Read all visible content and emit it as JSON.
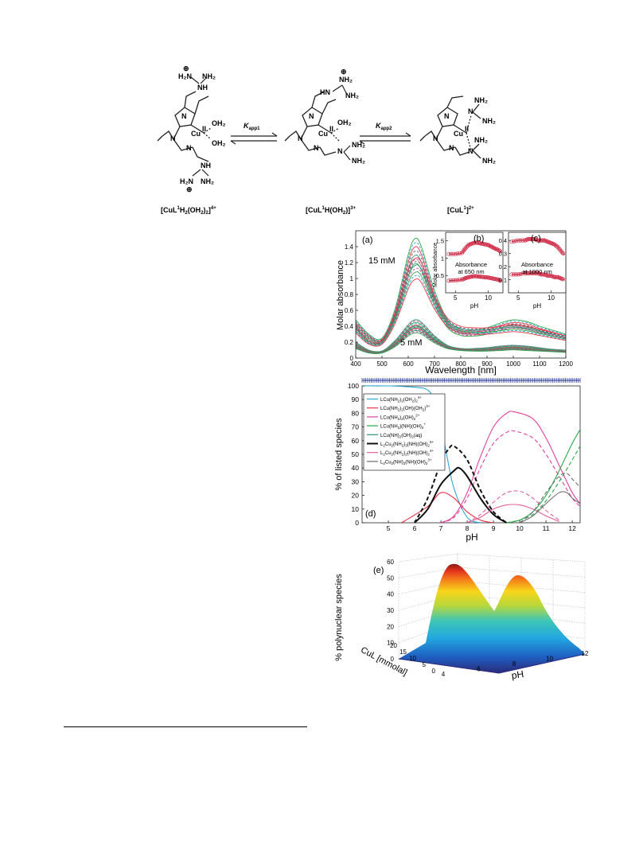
{
  "scheme": {
    "species": [
      {
        "label_base": "[CuL",
        "label_sup1": "1",
        "label_mid": "H",
        "label_sub1": "2",
        "label_tail": "(OH",
        "label_sub2": "2",
        "label_tail2": ")",
        "label_sub3": "2",
        "label_end": "]",
        "label_sup_end": "4+"
      },
      {
        "label_base": "[CuL",
        "label_sup1": "1",
        "label_mid": "H(OH",
        "label_sub1": "2",
        "label_tail": ")]",
        "label_sup_end": "3+"
      },
      {
        "label_base": "[CuL",
        "label_sup1": "1",
        "label_end": "]",
        "label_sup_end": "2+"
      }
    ],
    "k1_main": "K",
    "k1_sub": "app1",
    "k2_main": "K",
    "k2_sub": "app2",
    "atoms": {
      "N": "N",
      "NH": "NH",
      "H2N": "H₂N",
      "NH2": "NH₂",
      "OH2": "OH₂",
      "Cu": "Cu",
      "Cu_ox": "II",
      "HN": "HN",
      "plus": "⊕"
    }
  },
  "panel_a": {
    "letter": "(a)",
    "ylabel": "Molar absorbance",
    "xlabel": "Wavelength [nm]",
    "label_15": "15 mM",
    "label_5": "5 mM",
    "xticks": [
      "400",
      "500",
      "600",
      "700",
      "800",
      "900",
      "1000",
      "1100",
      "1200"
    ],
    "yticks": [
      "0",
      "0.2",
      "0.4",
      "0.6",
      "0.8",
      "1",
      "1.2",
      "1.4"
    ]
  },
  "panel_b": {
    "letter": "(b)",
    "ylabel": "Molar absorbance",
    "xlabel": "pH",
    "annotation_1": "Absorbance",
    "annotation_2": "at 650 nm",
    "xticks": [
      "5",
      "10"
    ],
    "yticks": [
      "0.5",
      "1",
      "1.5"
    ]
  },
  "panel_c": {
    "letter": "(c)",
    "xlabel": "pH",
    "annotation_1": "Absorbance",
    "annotation_2": "at 1000 nm",
    "xticks": [
      "5",
      "10"
    ],
    "yticks": [
      "0.1",
      "0.2",
      "0.3",
      "0.4"
    ]
  },
  "panel_d": {
    "letter": "(d)",
    "ylabel": "% of listed species",
    "xlabel": "pH",
    "xticks": [
      "5",
      "6",
      "7",
      "8",
      "9",
      "10",
      "11",
      "12"
    ],
    "yticks": [
      "0",
      "10",
      "20",
      "30",
      "40",
      "50",
      "60",
      "70",
      "80",
      "90",
      "100"
    ],
    "legend": [
      {
        "pre": "LCu(NH",
        "s1": "2",
        "mid": ")",
        "s2": "2",
        "tail": "(OH",
        "s3": "2",
        "tail2": ")",
        "s4": "2",
        "sup": "4+",
        "color": "#29a9d6",
        "dash": false
      },
      {
        "pre": "LCu(NH",
        "s1": "2",
        "mid": ")",
        "s2": "2",
        "tail": "(OH)(OH",
        "s3": "2",
        "tail2": ")",
        "s4": "",
        "sup": "3+",
        "color": "#e8334a",
        "dash": false
      },
      {
        "pre": "LCu(NH",
        "s1": "2",
        "mid": ")",
        "s2": "2",
        "tail": "(OH)",
        "s3": "2",
        "tail2": "",
        "s4": "",
        "sup": "2+",
        "color": "#e040a0",
        "dash": false
      },
      {
        "pre": "LCu(NH",
        "s1": "2",
        "mid": ")(NH)(OH)",
        "s2": "2",
        "tail": "",
        "s3": "",
        "tail2": "",
        "s4": "",
        "sup": "+",
        "color": "#2aa84a",
        "dash": false
      },
      {
        "pre": "LCu(NH)",
        "s1": "2",
        "mid": "(OH)",
        "s2": "2",
        "tail": "(aq)",
        "s3": "",
        "tail2": "",
        "s4": "",
        "sup": "",
        "color": "#2f8f7a",
        "dash": false
      },
      {
        "pre": "L",
        "s1": "2",
        "mid": "Cu",
        "s2": "2",
        "tail": "(NH",
        "s3": "2",
        "tail2": ")",
        "s4": "3",
        "sup": "5+",
        "tail3": "(NH)(OH)",
        "s5": "2",
        "color": "#111111",
        "dash": false
      },
      {
        "pre": "L",
        "s1": "2",
        "mid": "Cu",
        "s2": "2",
        "tail": "(NH",
        "s3": "2",
        "tail2": ")",
        "s4": "2",
        "sup": "4+",
        "tail3": "(NH)(OH)",
        "s5": "2",
        "color": "#e0609a",
        "dash": false
      },
      {
        "pre": "L",
        "s1": "2",
        "mid": "Cu",
        "s2": "2",
        "tail": "(NH)",
        "s3": "2",
        "tail2": "(NH)(OH)",
        "s4": "2",
        "sup": "3+",
        "color": "#6d6d6d",
        "dash": false
      }
    ]
  },
  "panel_e": {
    "letter": "(e)",
    "zlabel": "% polynuclear species",
    "ylabel": "CuL [mmolal]",
    "xlabel": "pH",
    "zticks": [
      "0",
      "10",
      "20",
      "30",
      "40",
      "50",
      "60"
    ],
    "yticks": [
      "0",
      "5",
      "10",
      "15",
      "20"
    ],
    "xticks": [
      "4",
      "6",
      "8",
      "10",
      "12"
    ]
  },
  "chart_data": [
    {
      "type": "line",
      "panel": "a",
      "title": "",
      "xlabel": "Wavelength [nm]",
      "ylabel": "Molar absorbance",
      "xlim": [
        400,
        1200
      ],
      "ylim": [
        0,
        1.6
      ],
      "series": [
        {
          "x": [
            400,
            450,
            500,
            550,
            600,
            625,
            650,
            700,
            750,
            800,
            850,
            900,
            950,
            1000,
            1050,
            1100,
            1150,
            1200
          ],
          "y": [
            0.48,
            0.3,
            0.25,
            0.62,
            1.3,
            1.5,
            1.4,
            0.85,
            0.48,
            0.36,
            0.35,
            0.38,
            0.44,
            0.48,
            0.46,
            0.4,
            0.35,
            0.3
          ]
        },
        {
          "x": [
            400,
            450,
            500,
            550,
            600,
            625,
            650,
            700,
            750,
            800,
            850,
            900,
            950,
            1000,
            1050,
            1100,
            1150,
            1200
          ],
          "y": [
            0.4,
            0.22,
            0.22,
            0.55,
            1.1,
            1.25,
            1.2,
            0.78,
            0.5,
            0.4,
            0.38,
            0.38,
            0.4,
            0.42,
            0.4,
            0.36,
            0.32,
            0.28
          ]
        },
        {
          "x": [
            400,
            450,
            500,
            550,
            600,
            625,
            650,
            700,
            750,
            800,
            850,
            900,
            950,
            1000,
            1050,
            1100,
            1150,
            1200
          ],
          "y": [
            0.2,
            0.1,
            0.09,
            0.22,
            0.42,
            0.48,
            0.45,
            0.28,
            0.16,
            0.12,
            0.12,
            0.13,
            0.15,
            0.16,
            0.15,
            0.13,
            0.11,
            0.1
          ]
        },
        {
          "x": [
            400,
            450,
            500,
            550,
            600,
            625,
            650,
            700,
            750,
            800,
            850,
            900,
            950,
            1000,
            1050,
            1100,
            1150,
            1200
          ],
          "y": [
            0.15,
            0.08,
            0.08,
            0.18,
            0.35,
            0.4,
            0.38,
            0.24,
            0.15,
            0.12,
            0.11,
            0.11,
            0.12,
            0.13,
            0.12,
            0.11,
            0.1,
            0.09
          ]
        }
      ]
    },
    {
      "type": "scatter",
      "panel": "b",
      "xlabel": "pH",
      "ylabel": "Molar absorbance",
      "xlim": [
        4,
        12
      ],
      "ylim": [
        0,
        1.7
      ],
      "series": [
        {
          "x": [
            4,
            5,
            6,
            6.5,
            7,
            7.5,
            8,
            8.5,
            9,
            9.5,
            10,
            10.5,
            11,
            11.5,
            12
          ],
          "y": [
            1.12,
            1.12,
            1.15,
            1.28,
            1.38,
            1.42,
            1.45,
            1.44,
            1.42,
            1.4,
            1.38,
            1.33,
            1.28,
            1.24,
            1.18
          ]
        },
        {
          "x": [
            4,
            5,
            6,
            6.5,
            7,
            7.5,
            8,
            8.5,
            9,
            9.5,
            10,
            10.5,
            11,
            11.5,
            12
          ],
          "y": [
            0.35,
            0.36,
            0.38,
            0.42,
            0.45,
            0.47,
            0.48,
            0.47,
            0.46,
            0.45,
            0.44,
            0.42,
            0.4,
            0.38,
            0.34
          ]
        }
      ]
    },
    {
      "type": "scatter",
      "panel": "c",
      "xlabel": "pH",
      "xlim": [
        4,
        12
      ],
      "ylim": [
        0,
        0.45
      ],
      "series": [
        {
          "x": [
            4,
            5,
            6,
            6.5,
            7,
            7.5,
            8,
            8.5,
            9,
            9.5,
            10,
            10.5,
            11,
            11.5,
            12
          ],
          "y": [
            0.39,
            0.4,
            0.4,
            0.41,
            0.41,
            0.41,
            0.4,
            0.4,
            0.4,
            0.39,
            0.38,
            0.37,
            0.35,
            0.32,
            0.29
          ]
        },
        {
          "x": [
            4,
            5,
            6,
            6.5,
            7,
            7.5,
            8,
            8.5,
            9,
            9.5,
            10,
            10.5,
            11,
            11.5,
            12
          ],
          "y": [
            0.14,
            0.14,
            0.15,
            0.15,
            0.15,
            0.15,
            0.15,
            0.14,
            0.14,
            0.13,
            0.13,
            0.12,
            0.12,
            0.11,
            0.1
          ]
        }
      ]
    },
    {
      "type": "line",
      "panel": "d",
      "xlabel": "pH",
      "ylabel": "% of listed species",
      "xlim": [
        4,
        12.3
      ],
      "ylim": [
        0,
        100
      ],
      "series": [
        {
          "color": "#29a9d6",
          "dash": false,
          "x": [
            4,
            5,
            6,
            6.5,
            6.8,
            7,
            7.2,
            7.5,
            8,
            8.5
          ],
          "y": [
            100,
            100,
            99,
            97,
            88,
            72,
            52,
            25,
            4,
            0
          ]
        },
        {
          "color": "#e8334a",
          "dash": false,
          "x": [
            5.5,
            6.5,
            7,
            7.5,
            8,
            8.5,
            9
          ],
          "y": [
            0,
            12,
            22,
            18,
            8,
            2,
            0
          ]
        },
        {
          "color": "#e040a0",
          "dash": false,
          "x": [
            7,
            7.5,
            8,
            8.5,
            9,
            9.5,
            9.8,
            10.5,
            11,
            11.5,
            12,
            12.3
          ],
          "y": [
            0,
            5,
            22,
            48,
            70,
            80,
            81,
            76,
            62,
            42,
            22,
            14
          ]
        },
        {
          "color": "#e040a0",
          "dash": true,
          "x": [
            7,
            7.5,
            8,
            8.5,
            9,
            9.5,
            9.8,
            10.5,
            11,
            11.5,
            12,
            12.3
          ],
          "y": [
            0,
            4,
            18,
            40,
            58,
            66,
            67,
            62,
            50,
            34,
            18,
            12
          ]
        },
        {
          "color": "#2aa84a",
          "dash": false,
          "x": [
            9.5,
            10,
            10.5,
            11,
            11.5,
            12,
            12.3
          ],
          "y": [
            0,
            2,
            8,
            20,
            38,
            58,
            68
          ]
        },
        {
          "color": "#2aa84a",
          "dash": true,
          "x": [
            9.5,
            10,
            10.5,
            11,
            11.5,
            12,
            12.3
          ],
          "y": [
            0,
            2,
            6,
            16,
            30,
            46,
            56
          ]
        },
        {
          "color": "#111111",
          "dash": false,
          "x": [
            6,
            6.5,
            7,
            7.5,
            7.7,
            8,
            8.5,
            9,
            9.5
          ],
          "y": [
            0,
            10,
            28,
            38,
            40,
            34,
            18,
            6,
            0
          ]
        },
        {
          "color": "#111111",
          "dash": true,
          "x": [
            6,
            6.5,
            7,
            7.3,
            7.5,
            8,
            8.5,
            9,
            9.5
          ],
          "y": [
            0,
            18,
            44,
            54,
            56,
            46,
            24,
            8,
            0
          ]
        },
        {
          "color": "#e0609a",
          "dash": false,
          "x": [
            8,
            8.5,
            9,
            9.5,
            10,
            10.5,
            11,
            11.5
          ],
          "y": [
            0,
            4,
            10,
            13,
            13,
            10,
            5,
            1
          ]
        },
        {
          "color": "#e0609a",
          "dash": true,
          "x": [
            8,
            8.5,
            9,
            9.5,
            10,
            10.5,
            11,
            11.5
          ],
          "y": [
            0,
            6,
            15,
            22,
            23,
            18,
            9,
            2
          ]
        },
        {
          "color": "#6d6d6d",
          "dash": false,
          "x": [
            10,
            10.5,
            11,
            11.5,
            11.8,
            12,
            12.3
          ],
          "y": [
            0,
            5,
            14,
            22,
            22,
            18,
            14
          ]
        },
        {
          "color": "#6d6d6d",
          "dash": true,
          "x": [
            10,
            10.5,
            11,
            11.5,
            11.8,
            12,
            12.3
          ],
          "y": [
            0,
            8,
            22,
            34,
            36,
            32,
            26
          ]
        }
      ]
    },
    {
      "type": "surface",
      "panel": "e",
      "xlabel": "pH",
      "ylabel": "CuL [mmolal]",
      "zlabel": "% polynuclear species",
      "xlim": [
        4,
        12
      ],
      "ylim": [
        0,
        20
      ],
      "zlim": [
        0,
        60
      ],
      "peaks": [
        {
          "pH": 7.3,
          "CuL": 20,
          "value": 57
        },
        {
          "pH": 9.8,
          "CuL": 20,
          "value": 46
        }
      ]
    }
  ]
}
